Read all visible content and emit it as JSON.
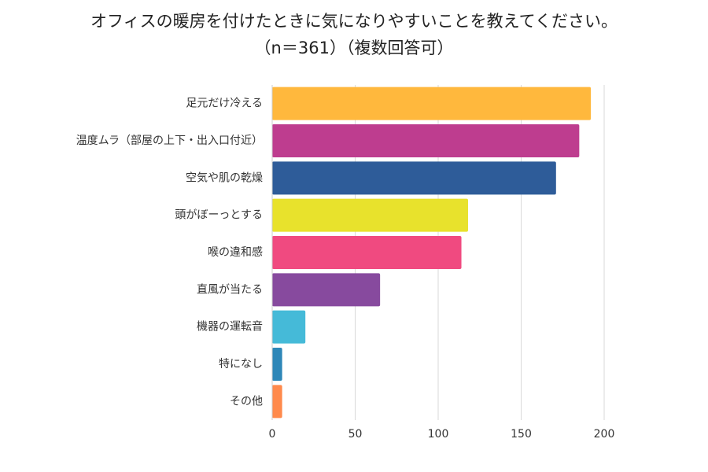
{
  "title_line1": "オフィスの暖房を付けたときに気になりやすいことを教えてください。",
  "title_line2": "（n＝361）（複数回答可）",
  "chart_data": {
    "type": "bar",
    "orientation": "horizontal",
    "categories": [
      "足元だけ冷える",
      "温度ムラ（部屋の上下・出入口付近）",
      "空気や肌の乾燥",
      "頭がぼーっとする",
      "喉の違和感",
      "直風が当たる",
      "機器の運転音",
      "特になし",
      "その他"
    ],
    "values": [
      192,
      185,
      171,
      118,
      114,
      65,
      20,
      6,
      6
    ],
    "colors": [
      "#FFB83D",
      "#BE3D8F",
      "#2E5C99",
      "#E8E22C",
      "#F04A80",
      "#874A9E",
      "#45BAD8",
      "#2E87B8",
      "#FF8A4C"
    ],
    "xlim": [
      0,
      200
    ],
    "xticks": [
      0,
      50,
      100,
      150,
      200
    ],
    "grid": true
  }
}
